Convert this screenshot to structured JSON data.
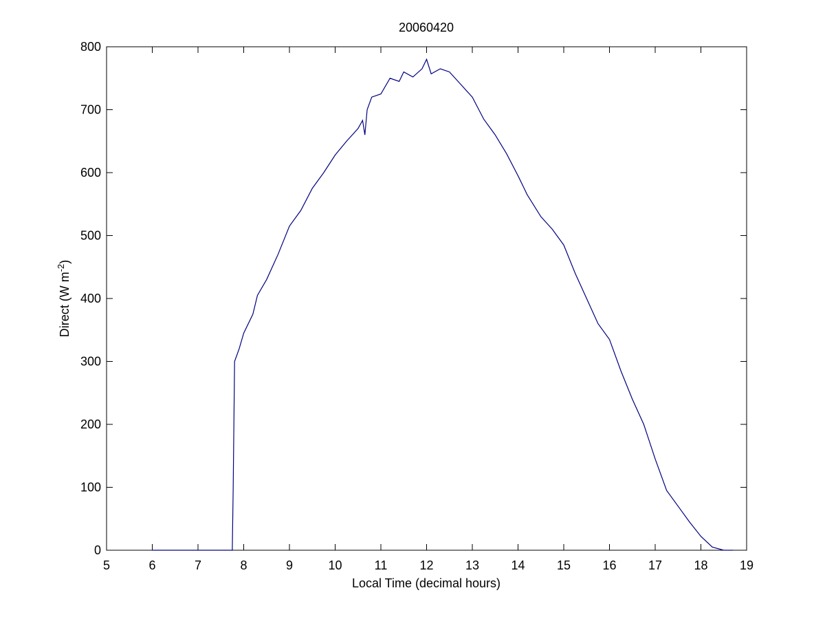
{
  "chart_data": {
    "type": "line",
    "title": "20060420",
    "xlabel": "Local Time (decimal hours)",
    "ylabel": {
      "text": "Direct (W m",
      "superscript": "-2",
      "suffix": ")"
    },
    "x": [
      6.0,
      7.0,
      7.75,
      7.77,
      7.8,
      7.9,
      8.0,
      8.2,
      8.3,
      8.5,
      8.75,
      9.0,
      9.25,
      9.5,
      9.75,
      10.0,
      10.25,
      10.5,
      10.6,
      10.65,
      10.7,
      10.8,
      11.0,
      11.2,
      11.4,
      11.5,
      11.7,
      11.9,
      12.0,
      12.1,
      12.3,
      12.5,
      12.75,
      13.0,
      13.25,
      13.5,
      13.75,
      14.0,
      14.2,
      14.5,
      14.75,
      15.0,
      15.25,
      15.5,
      15.75,
      16.0,
      16.25,
      16.5,
      16.75,
      17.0,
      17.25,
      17.5,
      17.75,
      18.0,
      18.25,
      18.5,
      18.7
    ],
    "series": [
      {
        "color": "#000080",
        "values": [
          0,
          0,
          0,
          100,
          300,
          320,
          345,
          375,
          405,
          430,
          470,
          515,
          540,
          575,
          600,
          628,
          650,
          670,
          683,
          660,
          700,
          720,
          725,
          750,
          745,
          760,
          752,
          765,
          780,
          757,
          765,
          760,
          740,
          720,
          685,
          660,
          630,
          595,
          565,
          530,
          510,
          485,
          440,
          400,
          360,
          335,
          285,
          240,
          200,
          145,
          95,
          70,
          45,
          22,
          5,
          0,
          0
        ]
      }
    ],
    "xlim": [
      5,
      19
    ],
    "xticks": [
      5,
      6,
      7,
      8,
      9,
      10,
      11,
      12,
      13,
      14,
      15,
      16,
      17,
      18,
      19
    ],
    "ylim": [
      0,
      800
    ],
    "yticks": [
      0,
      100,
      200,
      300,
      400,
      500,
      600,
      700,
      800
    ]
  }
}
